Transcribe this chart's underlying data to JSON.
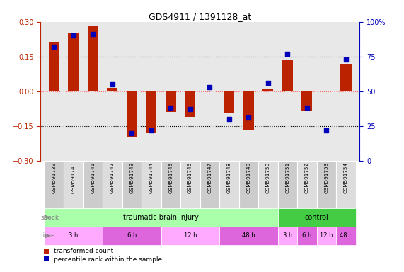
{
  "title": "GDS4911 / 1391128_at",
  "samples": [
    "GSM591739",
    "GSM591740",
    "GSM591741",
    "GSM591742",
    "GSM591743",
    "GSM591744",
    "GSM591745",
    "GSM591746",
    "GSM591747",
    "GSM591748",
    "GSM591749",
    "GSM591750",
    "GSM591751",
    "GSM591752",
    "GSM591753",
    "GSM591754"
  ],
  "red_values": [
    0.21,
    0.25,
    0.285,
    0.015,
    -0.2,
    -0.18,
    -0.09,
    -0.11,
    0.0,
    -0.095,
    -0.165,
    0.01,
    0.135,
    -0.085,
    0.0,
    0.12
  ],
  "blue_percentiles": [
    82,
    90,
    91,
    55,
    20,
    22,
    38,
    37,
    53,
    30,
    31,
    56,
    77,
    38,
    22,
    73
  ],
  "ylim_left": [
    -0.3,
    0.3
  ],
  "ylim_right": [
    0,
    100
  ],
  "yticks_left": [
    -0.3,
    -0.15,
    0.0,
    0.15,
    0.3
  ],
  "yticks_right": [
    0,
    25,
    50,
    75,
    100
  ],
  "hlines": [
    0.15,
    -0.15
  ],
  "hline_zero_color": "#ff6666",
  "hline_other_color": "#000000",
  "shock_groups": [
    {
      "label": "traumatic brain injury",
      "start": 0,
      "end": 12,
      "color": "#aaffaa"
    },
    {
      "label": "control",
      "start": 12,
      "end": 16,
      "color": "#44cc44"
    }
  ],
  "time_groups": [
    {
      "label": "3 h",
      "start": 0,
      "end": 3,
      "color": "#ffaaff"
    },
    {
      "label": "6 h",
      "start": 3,
      "end": 6,
      "color": "#dd66dd"
    },
    {
      "label": "12 h",
      "start": 6,
      "end": 9,
      "color": "#ffaaff"
    },
    {
      "label": "48 h",
      "start": 9,
      "end": 12,
      "color": "#dd66dd"
    },
    {
      "label": "3 h",
      "start": 12,
      "end": 13,
      "color": "#ffaaff"
    },
    {
      "label": "6 h",
      "start": 13,
      "end": 14,
      "color": "#dd66dd"
    },
    {
      "label": "12 h",
      "start": 14,
      "end": 15,
      "color": "#ffaaff"
    },
    {
      "label": "48 h",
      "start": 15,
      "end": 16,
      "color": "#dd66dd"
    }
  ],
  "red_color": "#bb2200",
  "blue_color": "#0000bb",
  "bar_width": 0.55,
  "dot_size": 18,
  "plot_bg": "#e8e8e8",
  "label_bg_odd": "#cccccc",
  "label_bg_even": "#dddddd",
  "legend_red": "transformed count",
  "legend_blue": "percentile rank within the sample"
}
